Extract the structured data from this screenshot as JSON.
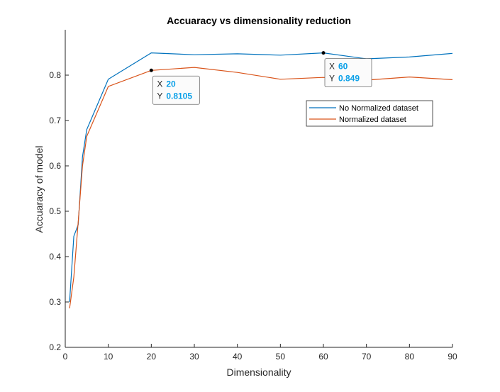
{
  "chart_data": {
    "type": "line",
    "title": "Accuaracy vs dimensionality reduction",
    "xlabel": "Dimensionality",
    "ylabel": "Accuaracy of model",
    "xlim": [
      0,
      90
    ],
    "ylim": [
      0.2,
      0.9
    ],
    "xticks": [
      0,
      10,
      20,
      30,
      40,
      50,
      60,
      70,
      80,
      90
    ],
    "yticks": [
      0.2,
      0.3,
      0.4,
      0.5,
      0.6,
      0.7,
      0.8
    ],
    "ytick_labels": [
      "0.2",
      "0.3",
      "0.4",
      "0.5",
      "0.6",
      "0.7",
      "0.8"
    ],
    "grid": false,
    "legend_position": "right",
    "series": [
      {
        "name": "No Normalized dataset",
        "color": "#0072BD",
        "x": [
          1,
          2,
          3,
          4,
          5,
          10,
          20,
          30,
          40,
          50,
          60,
          70,
          80,
          90
        ],
        "y": [
          0.3,
          0.445,
          0.47,
          0.62,
          0.68,
          0.791,
          0.849,
          0.845,
          0.847,
          0.844,
          0.849,
          0.836,
          0.84,
          0.848
        ]
      },
      {
        "name": "Normalized dataset",
        "color": "#D95319",
        "x": [
          1,
          2,
          3,
          4,
          5,
          10,
          20,
          30,
          40,
          50,
          60,
          70,
          80,
          90
        ],
        "y": [
          0.286,
          0.355,
          0.475,
          0.6,
          0.665,
          0.775,
          0.8105,
          0.817,
          0.806,
          0.791,
          0.795,
          0.789,
          0.796,
          0.79
        ]
      }
    ],
    "datatips": [
      {
        "series": 1,
        "x_label": "X",
        "x_value": "20",
        "y_label": "Y",
        "y_value": "0.8105",
        "x": 20,
        "y": 0.8105
      },
      {
        "series": 0,
        "x_label": "X",
        "x_value": "60",
        "y_label": "Y",
        "y_value": "0.849",
        "x": 60,
        "y": 0.849
      }
    ]
  }
}
